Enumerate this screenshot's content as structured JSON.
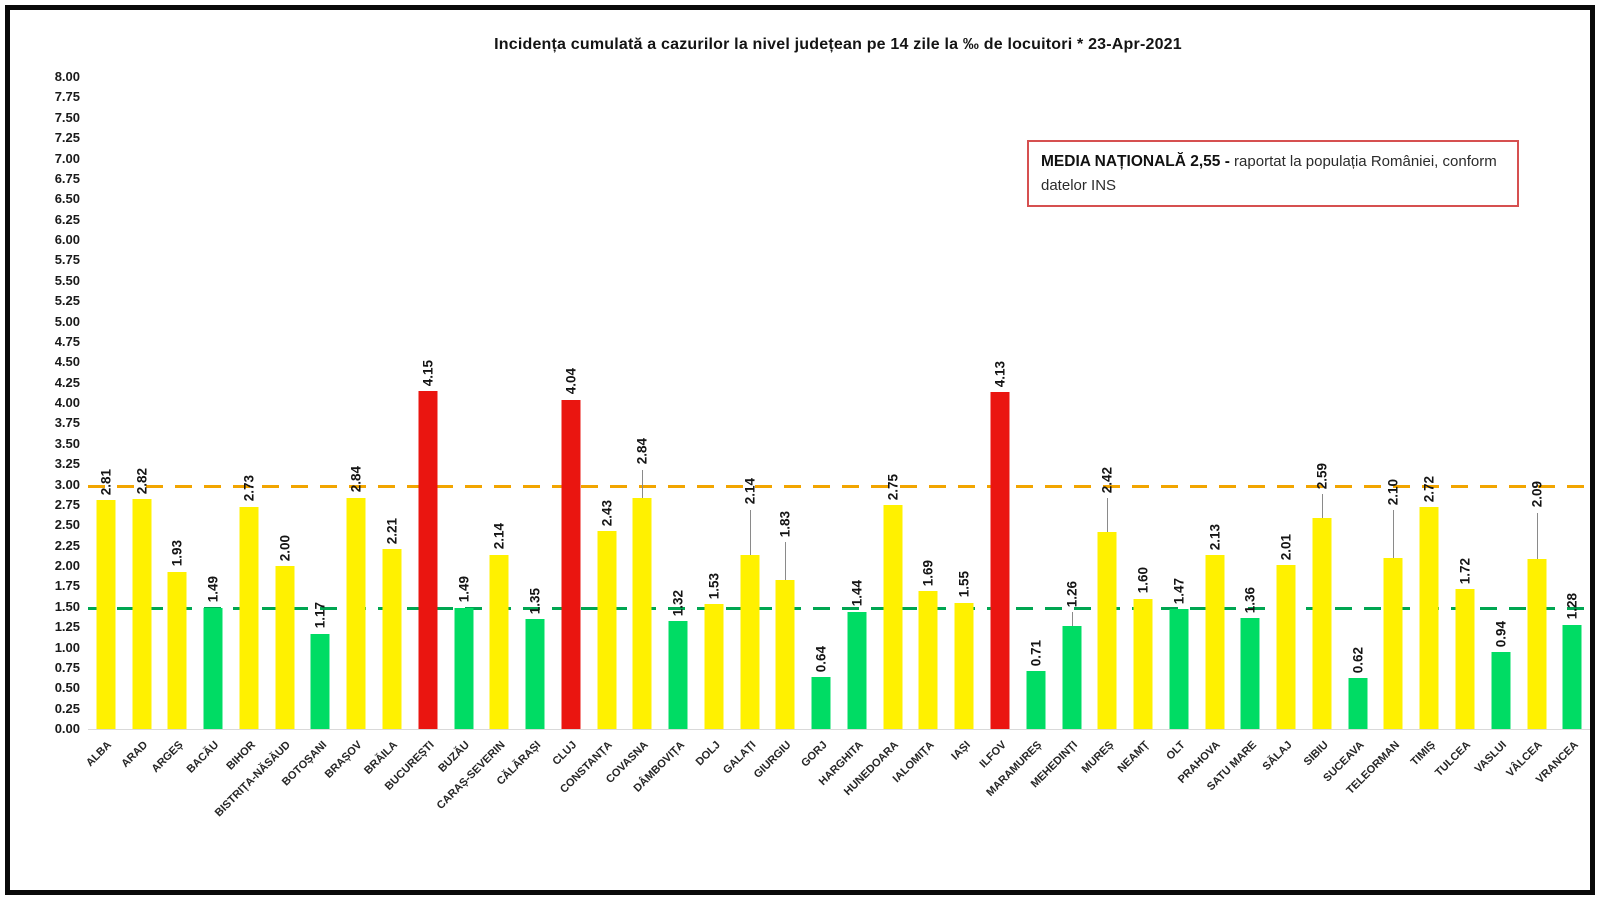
{
  "title": "Incidența cumulată a cazurilor la nivel județean pe 14 zile la ‰ de locuitori *  23-Apr-2021",
  "annotation_box": {
    "bold_text": "MEDIA NAȚIONALĂ  2,55 -",
    "normal_text": " raportat la populația României, conform datelor INS",
    "border_color": "#d65050"
  },
  "chart_data": {
    "type": "bar",
    "title": "Incidența cumulată a cazurilor la nivel județean pe 14 zile la ‰ de locuitori *  23-Apr-2021",
    "xlabel": "",
    "ylabel": "",
    "ylim": [
      0,
      8
    ],
    "ytick_step": 0.25,
    "grid": false,
    "yticks": [
      "8.00",
      "7.75",
      "7.50",
      "7.25",
      "7.00",
      "6.75",
      "6.50",
      "6.25",
      "6.00",
      "5.75",
      "5.50",
      "5.25",
      "5.00",
      "4.75",
      "4.50",
      "4.25",
      "4.00",
      "3.75",
      "3.50",
      "3.25",
      "3.00",
      "2.75",
      "2.50",
      "2.25",
      "2.00",
      "1.75",
      "1.50",
      "1.25",
      "1.00",
      "0.75",
      "0.50",
      "0.25",
      "0.00"
    ],
    "colors": {
      "yellow": "#fff100",
      "green": "#00dc64",
      "red": "#ea1510"
    },
    "thresholds": [
      {
        "name": "upper-threshold",
        "value": 3.0,
        "color": "#f2a500"
      },
      {
        "name": "lower-threshold",
        "value": 1.5,
        "color": "#00a651"
      }
    ],
    "points": [
      {
        "county": "ALBA",
        "value": 2.81,
        "label": "2.81",
        "color": "yellow",
        "leader": 0
      },
      {
        "county": "ARAD",
        "value": 2.82,
        "label": "2.82",
        "color": "yellow",
        "leader": 0
      },
      {
        "county": "ARGEȘ",
        "value": 1.93,
        "label": "1.93",
        "color": "yellow",
        "leader": 0
      },
      {
        "county": "BACĂU",
        "value": 1.49,
        "label": "1.49",
        "color": "green",
        "leader": 0
      },
      {
        "county": "BIHOR",
        "value": 2.73,
        "label": "2.73",
        "color": "yellow",
        "leader": 0
      },
      {
        "county": "BISTRIȚA-NĂSĂUD",
        "value": 2.0,
        "label": "2.00",
        "color": "yellow",
        "leader": 0
      },
      {
        "county": "BOTOȘANI",
        "value": 1.17,
        "label": "1.17",
        "color": "green",
        "leader": 0
      },
      {
        "county": "BRAȘOV",
        "value": 2.84,
        "label": "2.84",
        "color": "yellow",
        "leader": 0
      },
      {
        "county": "BRĂILA",
        "value": 2.21,
        "label": "2.21",
        "color": "yellow",
        "leader": 0
      },
      {
        "county": "BUCUREȘTI",
        "value": 4.15,
        "label": "4.15",
        "color": "red",
        "leader": 0
      },
      {
        "county": "BUZĂU",
        "value": 1.49,
        "label": "1.49",
        "color": "green",
        "leader": 0
      },
      {
        "county": "CARAȘ-SEVERIN",
        "value": 2.14,
        "label": "2.14",
        "color": "yellow",
        "leader": 0
      },
      {
        "county": "CĂLĂRAȘI",
        "value": 1.35,
        "label": "1.35",
        "color": "green",
        "leader": 0
      },
      {
        "county": "CLUJ",
        "value": 4.04,
        "label": "4.04",
        "color": "red",
        "leader": 0
      },
      {
        "county": "CONSTANȚA",
        "value": 2.43,
        "label": "2.43",
        "color": "yellow",
        "leader": 0
      },
      {
        "county": "COVASNA",
        "value": 2.84,
        "label": "2.84",
        "color": "yellow",
        "leader": 28
      },
      {
        "county": "DÂMBOVIȚA",
        "value": 1.32,
        "label": "1.32",
        "color": "green",
        "leader": 0
      },
      {
        "county": "DOLJ",
        "value": 1.53,
        "label": "1.53",
        "color": "yellow",
        "leader": 0
      },
      {
        "county": "GALAȚI",
        "value": 2.14,
        "label": "2.14",
        "color": "yellow",
        "leader": 45
      },
      {
        "county": "GIURGIU",
        "value": 1.83,
        "label": "1.83",
        "color": "yellow",
        "leader": 38
      },
      {
        "county": "GORJ",
        "value": 0.64,
        "label": "0.64",
        "color": "green",
        "leader": 0
      },
      {
        "county": "HARGHITA",
        "value": 1.44,
        "label": "1.44",
        "color": "green",
        "leader": 0
      },
      {
        "county": "HUNEDOARA",
        "value": 2.75,
        "label": "2.75",
        "color": "yellow",
        "leader": 0
      },
      {
        "county": "IALOMIȚA",
        "value": 1.69,
        "label": "1.69",
        "color": "yellow",
        "leader": 0
      },
      {
        "county": "IAȘI",
        "value": 1.55,
        "label": "1.55",
        "color": "yellow",
        "leader": 0
      },
      {
        "county": "ILFOV",
        "value": 4.13,
        "label": "4.13",
        "color": "red",
        "leader": 0
      },
      {
        "county": "MARAMUREȘ",
        "value": 0.71,
        "label": "0.71",
        "color": "green",
        "leader": 0
      },
      {
        "county": "MEHEDINȚI",
        "value": 1.26,
        "label": "1.26",
        "color": "green",
        "leader": 14
      },
      {
        "county": "MUREȘ",
        "value": 2.42,
        "label": "2.42",
        "color": "yellow",
        "leader": 34
      },
      {
        "county": "NEAMȚ",
        "value": 1.6,
        "label": "1.60",
        "color": "yellow",
        "leader": 0
      },
      {
        "county": "OLT",
        "value": 1.47,
        "label": "1.47",
        "color": "green",
        "leader": 0
      },
      {
        "county": "PRAHOVA",
        "value": 2.13,
        "label": "2.13",
        "color": "yellow",
        "leader": 0
      },
      {
        "county": "SATU MARE",
        "value": 1.36,
        "label": "1.36",
        "color": "green",
        "leader": 0
      },
      {
        "county": "SĂLAJ",
        "value": 2.01,
        "label": "2.01",
        "color": "yellow",
        "leader": 0
      },
      {
        "county": "SIBIU",
        "value": 2.59,
        "label": "2.59",
        "color": "yellow",
        "leader": 24
      },
      {
        "county": "SUCEAVA",
        "value": 0.62,
        "label": "0.62",
        "color": "green",
        "leader": 0
      },
      {
        "county": "TELEORMAN",
        "value": 2.1,
        "label": "2.10",
        "color": "yellow",
        "leader": 48
      },
      {
        "county": "TIMIȘ",
        "value": 2.72,
        "label": "2.72",
        "color": "yellow",
        "leader": 0
      },
      {
        "county": "TULCEA",
        "value": 1.72,
        "label": "1.72",
        "color": "yellow",
        "leader": 0
      },
      {
        "county": "VASLUI",
        "value": 0.94,
        "label": "0.94",
        "color": "green",
        "leader": 0
      },
      {
        "county": "VÂLCEA",
        "value": 2.09,
        "label": "2.09",
        "color": "yellow",
        "leader": 46
      },
      {
        "county": "VRANCEA",
        "value": 1.28,
        "label": "1.28",
        "color": "green",
        "leader": 0
      }
    ]
  }
}
